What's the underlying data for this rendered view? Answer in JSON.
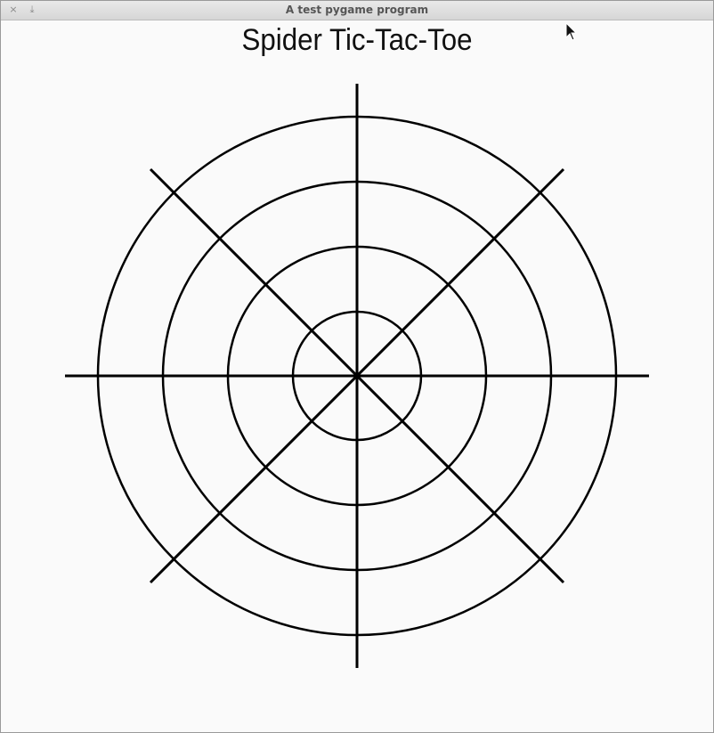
{
  "window": {
    "title": "A test pygame program",
    "close_glyph": "×",
    "minimize_glyph": "⤓"
  },
  "game": {
    "title": "Spider Tic-Tac-Toe",
    "board": {
      "rings": 4,
      "spokes": 8,
      "line_color": "#000000",
      "background_color": "#fafafa"
    }
  }
}
